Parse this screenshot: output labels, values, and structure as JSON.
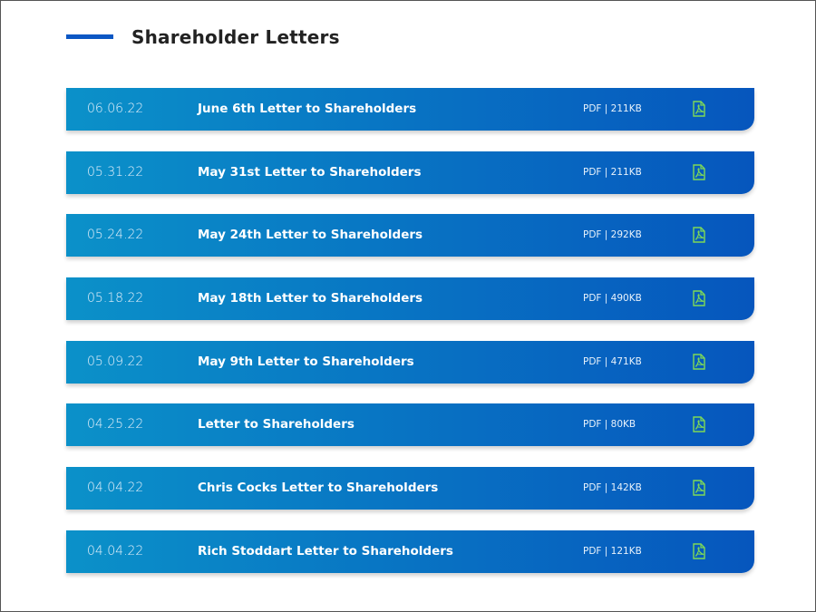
{
  "section": {
    "title": "Shareholder Letters",
    "accent_color": "#0b57c4"
  },
  "letters": [
    {
      "date": "06.06.22",
      "title": "June 6th Letter to Shareholders",
      "meta": "PDF | 211KB",
      "icon": "pdf-icon"
    },
    {
      "date": "05.31.22",
      "title": "May 31st Letter to Shareholders",
      "meta": "PDF | 211KB",
      "icon": "pdf-icon"
    },
    {
      "date": "05.24.22",
      "title": "May 24th Letter to Shareholders",
      "meta": "PDF | 292KB",
      "icon": "pdf-icon"
    },
    {
      "date": "05.18.22",
      "title": "May 18th Letter to Shareholders",
      "meta": "PDF | 490KB",
      "icon": "pdf-icon"
    },
    {
      "date": "05.09.22",
      "title": "May 9th Letter to Shareholders",
      "meta": "PDF | 471KB",
      "icon": "pdf-icon"
    },
    {
      "date": "04.25.22",
      "title": "Letter to Shareholders",
      "meta": "PDF | 80KB",
      "icon": "pdf-icon"
    },
    {
      "date": "04.04.22",
      "title": "Chris Cocks Letter to Shareholders",
      "meta": "PDF | 142KB",
      "icon": "pdf-icon"
    },
    {
      "date": "04.04.22",
      "title": "Rich Stoddart Letter to Shareholders",
      "meta": "PDF | 121KB",
      "icon": "pdf-icon"
    }
  ],
  "colors": {
    "row_gradient_start": "#0b91c9",
    "row_gradient_end": "#0656bd",
    "icon_color": "#7ed957"
  }
}
